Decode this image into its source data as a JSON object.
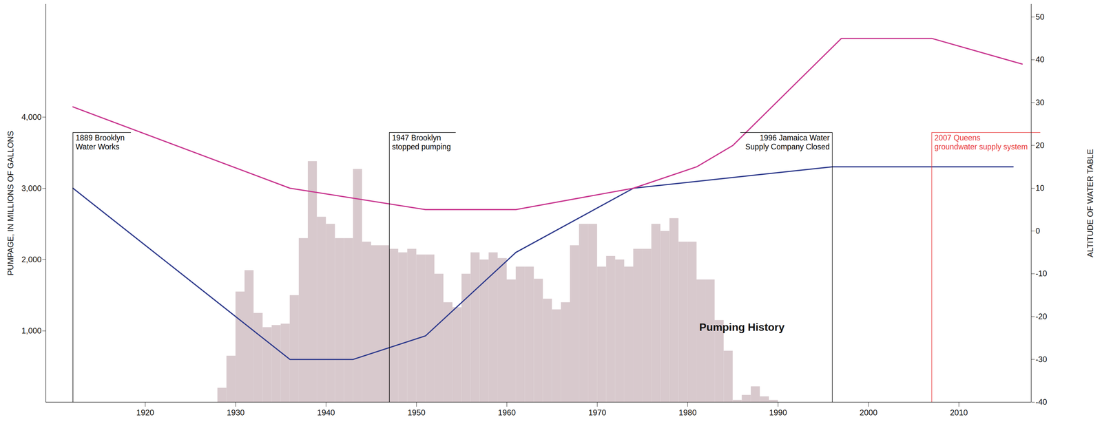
{
  "chart_data": {
    "type": "bar",
    "ylabel": "PUMPAGE, IN MILLIONS OF GALLONS",
    "y2label": "ALTITUDE OF WATER TABLE",
    "xlim": [
      1909,
      2018
    ],
    "xticks": [
      1920,
      1930,
      1940,
      1950,
      1960,
      1970,
      1980,
      1990,
      2000,
      2010
    ],
    "ylim": [
      0,
      5585
    ],
    "yticks": [
      {
        "value": 1000,
        "label": "1,000"
      },
      {
        "value": 2000,
        "label": "2,000"
      },
      {
        "value": 3000,
        "label": "3,000"
      },
      {
        "value": 4000,
        "label": "4,000"
      }
    ],
    "y2lim": [
      -40,
      53
    ],
    "y2ticks": [
      -40,
      -30,
      -20,
      -10,
      0,
      10,
      20,
      30,
      40,
      50
    ],
    "color": "#d8c9cd",
    "bins": [
      1928,
      1929,
      1930,
      1931,
      1932,
      1933,
      1934,
      1935,
      1936,
      1937,
      1938,
      1939,
      1940,
      1941,
      1942,
      1943,
      1944,
      1945,
      1946,
      1947,
      1948,
      1949,
      1950,
      1951,
      1952,
      1953,
      1954,
      1955,
      1956,
      1957,
      1958,
      1959,
      1960,
      1961,
      1962,
      1963,
      1964,
      1965,
      1966,
      1967,
      1968,
      1969,
      1970,
      1971,
      1972,
      1973,
      1974,
      1975,
      1976,
      1977,
      1978,
      1979,
      1980,
      1981,
      1982,
      1983,
      1984,
      1985,
      1986,
      1987,
      1988,
      1989,
      1990
    ],
    "values": [
      200,
      650,
      1550,
      1850,
      1250,
      1050,
      1080,
      1100,
      1500,
      2300,
      3380,
      2600,
      2500,
      2300,
      2300,
      3270,
      2250,
      2200,
      2200,
      2150,
      2100,
      2150,
      2070,
      2070,
      1800,
      1400,
      1330,
      1800,
      2100,
      2000,
      2100,
      2020,
      1720,
      1900,
      1900,
      1730,
      1450,
      1300,
      1400,
      2200,
      2500,
      2500,
      1900,
      2050,
      2000,
      1900,
      2150,
      2150,
      2500,
      2400,
      2580,
      2250,
      2250,
      1720,
      1720,
      1150,
      720,
      30,
      100,
      220,
      80,
      30
    ],
    "series": [
      {
        "type": "line",
        "axis": "y2",
        "color": "#2e3a8c",
        "x": [
          1912,
          1936,
          1943,
          1951,
          1961,
          1974,
          1996,
          2016
        ],
        "values": [
          10,
          -30,
          -30,
          -24.5,
          -5,
          10,
          15,
          15
        ]
      },
      {
        "type": "line",
        "axis": "y2",
        "color": "#c8368f",
        "x": [
          1912,
          1936,
          1951,
          1961,
          1974,
          1981,
          1985,
          1997,
          2007,
          2017
        ],
        "values": [
          29,
          10,
          5,
          5,
          10,
          15,
          20,
          45,
          45,
          39
        ]
      }
    ],
    "annotations": [
      {
        "text": [
          "1889 Brooklyn",
          "Water Works"
        ],
        "x": 1912,
        "y2": 23,
        "color": "#000000"
      },
      {
        "text": [
          "1947 Brooklyn",
          "stopped pumping"
        ],
        "x": 1947,
        "y2": 23,
        "color": "#000000"
      },
      {
        "text": [
          "1996 Jamaica Water",
          "Supply Company Closed"
        ],
        "x": 1996,
        "y2": 23,
        "color": "#000000"
      },
      {
        "text": [
          "2007 Queens",
          "groundwater supply system"
        ],
        "x": 2007,
        "y2": 23,
        "color": "#e8393b"
      }
    ],
    "labels": [
      {
        "text": "Pumping History",
        "x": 1986,
        "y": 1050
      }
    ]
  }
}
